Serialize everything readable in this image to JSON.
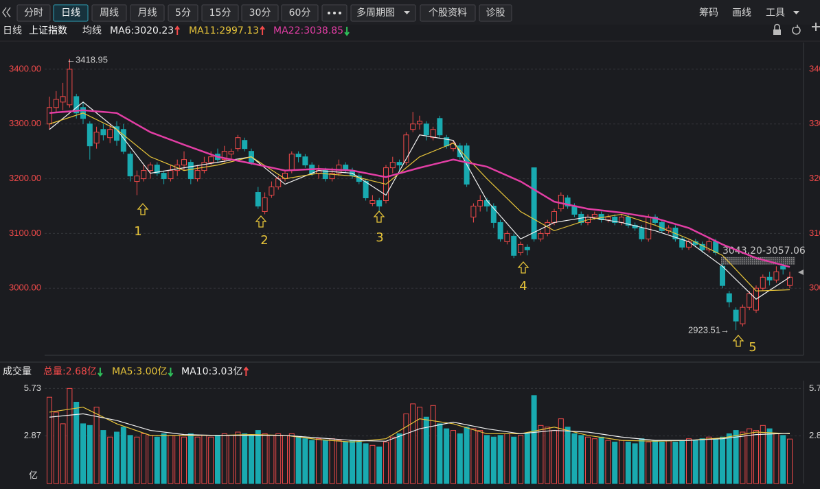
{
  "toolbar": {
    "tabs": [
      "分时",
      "日线",
      "周线",
      "月线",
      "5分",
      "15分",
      "30分",
      "60分"
    ],
    "active": 1,
    "buttons": [
      "多周期图",
      "个股资料",
      "诊股"
    ],
    "right": [
      "筹码",
      "画线",
      "工具"
    ]
  },
  "info": {
    "period": "日线",
    "name": "上证指数",
    "ma_label": "均线"
  },
  "chart_data": [
    {
      "type": "candlestick",
      "up_color": "#f24a4a",
      "down_color": "#19aab0",
      "ylim": [
        2877.5,
        3438.75
      ],
      "yticks": [
        {
          "value": 3000,
          "label": "3000.00"
        },
        {
          "value": 3100,
          "label": "3100.00"
        },
        {
          "value": 3200,
          "label": "3200.00"
        },
        {
          "value": 3300,
          "label": "3300.00"
        },
        {
          "value": 3400,
          "label": "3400.00"
        }
      ],
      "grid": true,
      "candles": [
        [
          3300,
          3350,
          3290,
          3330
        ],
        [
          3330,
          3360,
          3320,
          3345
        ],
        [
          3340,
          3375,
          3325,
          3350
        ],
        [
          3335,
          3418.95,
          3330,
          3400
        ],
        [
          3350,
          3355,
          3310,
          3320
        ],
        [
          3330,
          3340,
          3300,
          3310
        ],
        [
          3300,
          3305,
          3235,
          3260
        ],
        [
          3265,
          3295,
          3255,
          3285
        ],
        [
          3290,
          3300,
          3270,
          3280
        ],
        [
          3275,
          3300,
          3265,
          3290
        ],
        [
          3295,
          3305,
          3260,
          3270
        ],
        [
          3290,
          3300,
          3245,
          3250
        ],
        [
          3245,
          3250,
          3195,
          3205
        ],
        [
          3195,
          3215,
          3170,
          3205
        ],
        [
          3200,
          3225,
          3195,
          3215
        ],
        [
          3215,
          3230,
          3200,
          3225
        ],
        [
          3225,
          3230,
          3205,
          3210
        ],
        [
          3210,
          3215,
          3190,
          3200
        ],
        [
          3200,
          3225,
          3195,
          3215
        ],
        [
          3215,
          3235,
          3205,
          3225
        ],
        [
          3225,
          3250,
          3215,
          3235
        ],
        [
          3230,
          3235,
          3190,
          3200
        ],
        [
          3200,
          3225,
          3195,
          3215
        ],
        [
          3215,
          3240,
          3210,
          3230
        ],
        [
          3230,
          3250,
          3225,
          3240
        ],
        [
          3245,
          3255,
          3230,
          3235
        ],
        [
          3235,
          3260,
          3230,
          3250
        ],
        [
          3245,
          3255,
          3235,
          3250
        ],
        [
          3255,
          3280,
          3250,
          3275
        ],
        [
          3270,
          3275,
          3250,
          3255
        ],
        [
          3250,
          3255,
          3225,
          3230
        ],
        [
          3175,
          3185,
          3145,
          3150
        ],
        [
          3140,
          3175,
          3135,
          3165
        ],
        [
          3170,
          3195,
          3165,
          3185
        ],
        [
          3185,
          3205,
          3180,
          3200
        ],
        [
          3200,
          3215,
          3195,
          3210
        ],
        [
          3215,
          3250,
          3210,
          3245
        ],
        [
          3245,
          3250,
          3230,
          3240
        ],
        [
          3240,
          3245,
          3220,
          3225
        ],
        [
          3225,
          3230,
          3205,
          3210
        ],
        [
          3210,
          3225,
          3200,
          3215
        ],
        [
          3215,
          3220,
          3195,
          3200
        ],
        [
          3200,
          3220,
          3195,
          3210
        ],
        [
          3210,
          3235,
          3205,
          3225
        ],
        [
          3225,
          3230,
          3210,
          3215
        ],
        [
          3215,
          3220,
          3200,
          3205
        ],
        [
          3205,
          3210,
          3190,
          3195
        ],
        [
          3195,
          3200,
          3160,
          3165
        ],
        [
          3155,
          3170,
          3150,
          3160
        ],
        [
          3160,
          3165,
          3140,
          3150
        ],
        [
          3160,
          3225,
          3155,
          3220
        ],
        [
          3220,
          3240,
          3210,
          3230
        ],
        [
          3230,
          3235,
          3215,
          3225
        ],
        [
          3230,
          3285,
          3225,
          3280
        ],
        [
          3290,
          3322,
          3285,
          3300
        ],
        [
          3300,
          3315,
          3290,
          3305
        ],
        [
          3300,
          3305,
          3270,
          3280
        ],
        [
          3275,
          3295,
          3270,
          3290
        ],
        [
          3310,
          3315,
          3275,
          3280
        ],
        [
          3275,
          3280,
          3255,
          3260
        ],
        [
          3255,
          3270,
          3250,
          3265
        ],
        [
          3260,
          3265,
          3235,
          3240
        ],
        [
          3260,
          3265,
          3185,
          3190
        ],
        [
          3130,
          3155,
          3120,
          3150
        ],
        [
          3150,
          3170,
          3140,
          3160
        ],
        [
          3160,
          3165,
          3140,
          3150
        ],
        [
          3150,
          3155,
          3110,
          3120
        ],
        [
          3120,
          3125,
          3085,
          3090
        ],
        [
          3085,
          3105,
          3080,
          3100
        ],
        [
          3095,
          3100,
          3055,
          3060
        ],
        [
          3065,
          3085,
          3060,
          3080
        ],
        [
          3075,
          3080,
          3060,
          3070
        ],
        [
          3220,
          3220,
          3085,
          3090
        ],
        [
          3090,
          3105,
          3085,
          3100
        ],
        [
          3100,
          3125,
          3095,
          3120
        ],
        [
          3120,
          3145,
          3115,
          3140
        ],
        [
          3145,
          3175,
          3140,
          3170
        ],
        [
          3165,
          3170,
          3145,
          3150
        ],
        [
          3150,
          3155,
          3130,
          3135
        ],
        [
          3135,
          3140,
          3115,
          3120
        ],
        [
          3120,
          3135,
          3115,
          3130
        ],
        [
          3130,
          3140,
          3125,
          3135
        ],
        [
          3135,
          3140,
          3120,
          3125
        ],
        [
          3125,
          3135,
          3120,
          3130
        ],
        [
          3130,
          3135,
          3115,
          3120
        ],
        [
          3120,
          3135,
          3115,
          3130
        ],
        [
          3130,
          3135,
          3110,
          3115
        ],
        [
          3115,
          3120,
          3105,
          3110
        ],
        [
          3110,
          3115,
          3085,
          3090
        ],
        [
          3090,
          3135,
          3085,
          3130
        ],
        [
          3130,
          3135,
          3115,
          3120
        ],
        [
          3120,
          3125,
          3100,
          3105
        ],
        [
          3105,
          3115,
          3100,
          3110
        ],
        [
          3110,
          3115,
          3085,
          3090
        ],
        [
          3090,
          3095,
          3070,
          3075
        ],
        [
          3075,
          3090,
          3070,
          3085
        ],
        [
          3085,
          3090,
          3075,
          3080
        ],
        [
          3080,
          3085,
          3065,
          3070
        ],
        [
          3070,
          3090,
          3065,
          3085
        ],
        [
          3085,
          3090,
          3060,
          3065
        ],
        [
          3040,
          3045,
          3000,
          3005
        ],
        [
          2990,
          2995,
          2965,
          2975
        ],
        [
          2960,
          2965,
          2923.51,
          2940
        ],
        [
          2935,
          2970,
          2930,
          2965
        ],
        [
          2965,
          2995,
          2960,
          2990
        ],
        [
          2960,
          3005,
          2955,
          3000
        ],
        [
          3000,
          3025,
          2995,
          3020
        ],
        [
          3020,
          3030,
          3005,
          3015
        ],
        [
          3015,
          3040,
          3010,
          3030
        ],
        [
          3040,
          3045,
          3025,
          3035
        ],
        [
          3005,
          3030,
          3000,
          3020
        ]
      ],
      "series": [
        {
          "name": "MA6:3020.23",
          "color": "#f2f2f2",
          "trend": "up",
          "x": [
            0,
            5,
            10,
            15,
            20,
            25,
            30,
            35,
            40,
            45,
            50,
            55,
            60,
            65,
            70,
            75,
            80,
            85,
            90,
            95,
            100,
            105,
            110
          ],
          "values": [
            3290,
            3340,
            3290,
            3210,
            3220,
            3230,
            3240,
            3190,
            3215,
            3210,
            3170,
            3280,
            3270,
            3160,
            3090,
            3120,
            3130,
            3120,
            3105,
            3085,
            3040,
            2980,
            3020.23
          ]
        },
        {
          "name": "MA11:2997.13",
          "color": "#e8c53a",
          "trend": "up",
          "x": [
            0,
            5,
            10,
            15,
            20,
            25,
            30,
            35,
            40,
            45,
            50,
            55,
            60,
            65,
            70,
            75,
            80,
            85,
            90,
            95,
            100,
            105,
            110
          ],
          "values": [
            3300,
            3320,
            3290,
            3240,
            3215,
            3225,
            3240,
            3200,
            3210,
            3205,
            3190,
            3240,
            3265,
            3200,
            3140,
            3105,
            3125,
            3135,
            3115,
            3090,
            3060,
            2995,
            2997.13
          ]
        },
        {
          "name": "MA22:3038.85",
          "color": "#e33ea5",
          "trend": "down",
          "x": [
            0,
            5,
            10,
            15,
            20,
            25,
            30,
            35,
            40,
            45,
            50,
            55,
            60,
            65,
            70,
            75,
            80,
            85,
            90,
            95,
            100,
            105,
            110
          ],
          "values": [
            3320,
            3325,
            3320,
            3285,
            3262,
            3240,
            3228,
            3215,
            3218,
            3215,
            3203,
            3220,
            3235,
            3222,
            3195,
            3158,
            3145,
            3138,
            3128,
            3110,
            3080,
            3055,
            3038.85
          ]
        }
      ],
      "high_label": "←3418.95",
      "low_label": "2923.51→",
      "band": {
        "range": [
          3043.2,
          3057.06
        ],
        "label": "3043.20-3057.06"
      },
      "markers": [
        "1",
        "2",
        "3",
        "4",
        "5"
      ]
    },
    {
      "type": "bar",
      "title": "成交量",
      "unit": "亿",
      "ylim": [
        0,
        6.2
      ],
      "yticks": [
        2.87,
        5.73
      ],
      "total": {
        "label": "总量:2.68亿",
        "color": "#f24a4a",
        "trend": "down"
      },
      "values": [
        5.2,
        4.3,
        3.6,
        5.73,
        4.9,
        3.6,
        3.5,
        4.6,
        3.2,
        2.8,
        3.1,
        3.4,
        2.9,
        2.8,
        3.0,
        2.9,
        2.8,
        3.0,
        2.9,
        2.9,
        2.8,
        3.0,
        2.8,
        2.9,
        2.8,
        2.9,
        3.0,
        2.9,
        3.1,
        3.0,
        2.9,
        3.2,
        3.0,
        2.9,
        3.0,
        2.9,
        3.0,
        2.8,
        2.7,
        2.6,
        2.7,
        2.6,
        2.7,
        2.6,
        2.5,
        2.6,
        2.5,
        2.4,
        2.3,
        2.2,
        2.5,
        2.8,
        3.0,
        4.2,
        4.8,
        4.6,
        4.0,
        4.7,
        3.6,
        3.3,
        3.2,
        3.0,
        3.4,
        3.3,
        3.2,
        2.9,
        2.8,
        2.9,
        3.0,
        2.8,
        2.9,
        3.0,
        5.3,
        3.5,
        3.4,
        3.2,
        3.9,
        3.4,
        3.0,
        2.9,
        2.8,
        2.7,
        2.8,
        2.6,
        2.5,
        2.6,
        2.5,
        2.4,
        2.7,
        2.5,
        2.6,
        2.5,
        2.6,
        2.5,
        2.6,
        2.7,
        2.6,
        2.7,
        2.8,
        2.7,
        2.8,
        3.0,
        3.2,
        3.1,
        3.3,
        3.2,
        3.5,
        3.3,
        3.0,
        2.9,
        2.68
      ],
      "series": [
        {
          "name": "MA5:3.00亿",
          "color": "#e8c53a",
          "trend": "down",
          "x": [
            0,
            5,
            10,
            15,
            20,
            25,
            30,
            35,
            40,
            45,
            50,
            55,
            60,
            65,
            70,
            75,
            80,
            85,
            90,
            95,
            100,
            105,
            110
          ],
          "values": [
            4.3,
            4.6,
            3.6,
            2.9,
            2.9,
            2.9,
            2.95,
            2.9,
            2.65,
            2.5,
            2.7,
            3.9,
            3.6,
            3.0,
            3.0,
            3.4,
            2.9,
            2.6,
            2.55,
            2.6,
            2.75,
            3.1,
            3.0
          ]
        },
        {
          "name": "MA10:3.03亿",
          "color": "#f2f2f2",
          "trend": "up",
          "x": [
            0,
            5,
            10,
            15,
            20,
            25,
            30,
            35,
            40,
            45,
            50,
            55,
            60,
            65,
            70,
            75,
            80,
            85,
            90,
            95,
            100,
            105,
            110
          ],
          "values": [
            4.0,
            4.2,
            3.8,
            3.2,
            2.95,
            2.9,
            2.9,
            2.9,
            2.75,
            2.6,
            2.55,
            3.3,
            3.7,
            3.3,
            3.0,
            3.2,
            3.1,
            2.8,
            2.6,
            2.6,
            2.7,
            2.95,
            3.03
          ]
        }
      ]
    }
  ]
}
